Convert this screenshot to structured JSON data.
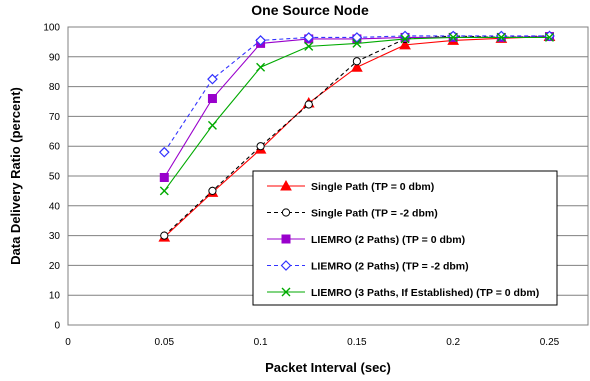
{
  "chart_data": {
    "type": "line",
    "title": "One Source Node",
    "xlabel": "Packet Interval (sec)",
    "ylabel": "Data Delivery Ratio (percent)",
    "xlim": [
      0,
      0.27
    ],
    "ylim": [
      0,
      100
    ],
    "x_ticks": [
      "0",
      "0.05",
      "0.1",
      "0.15",
      "0.2",
      "0.25"
    ],
    "x_tick_values": [
      0,
      0.05,
      0.1,
      0.15,
      0.2,
      0.25
    ],
    "y_ticks": [
      "0",
      "10",
      "20",
      "30",
      "40",
      "50",
      "60",
      "70",
      "80",
      "90",
      "100"
    ],
    "y_tick_values": [
      0,
      10,
      20,
      30,
      40,
      50,
      60,
      70,
      80,
      90,
      100
    ],
    "grid": "horizontal",
    "legend_position": "bottom-right",
    "x": [
      0.05,
      0.075,
      0.1,
      0.125,
      0.15,
      0.175,
      0.2,
      0.225,
      0.25
    ],
    "series": [
      {
        "name": "Single Path (TP = 0 dbm)",
        "color": "#ff0000",
        "dash": "solid",
        "marker": "triangle",
        "values": [
          29.5,
          44.5,
          59,
          74.5,
          86.5,
          94,
          95.5,
          96.2,
          96.8
        ]
      },
      {
        "name": "Single Path (TP = -2 dbm)",
        "color": "#000000",
        "dash": "dashed",
        "marker": "circle-open",
        "values": [
          30,
          45,
          60,
          74,
          88.5,
          96,
          97,
          96.5,
          97
        ]
      },
      {
        "name": "LIEMRO (2 Paths) (TP = 0 dbm)",
        "color": "#9900cc",
        "dash": "solid",
        "marker": "square",
        "values": [
          49.5,
          76,
          94.5,
          96,
          96,
          96.5,
          96.5,
          96.5,
          96.8
        ]
      },
      {
        "name": "LIEMRO (2 Paths) (TP = -2 dbm)",
        "color": "#3333ff",
        "dash": "dashed",
        "marker": "diamond-open",
        "values": [
          58,
          82.5,
          95.5,
          96.5,
          96.5,
          97,
          97,
          97,
          97
        ]
      },
      {
        "name": "LIEMRO (3 Paths, If Established) (TP = 0 dbm)",
        "color": "#00aa00",
        "dash": "solid",
        "marker": "x",
        "values": [
          45,
          67,
          86.5,
          93.5,
          94.5,
          96,
          96.5,
          96.5,
          96.5
        ]
      }
    ]
  }
}
